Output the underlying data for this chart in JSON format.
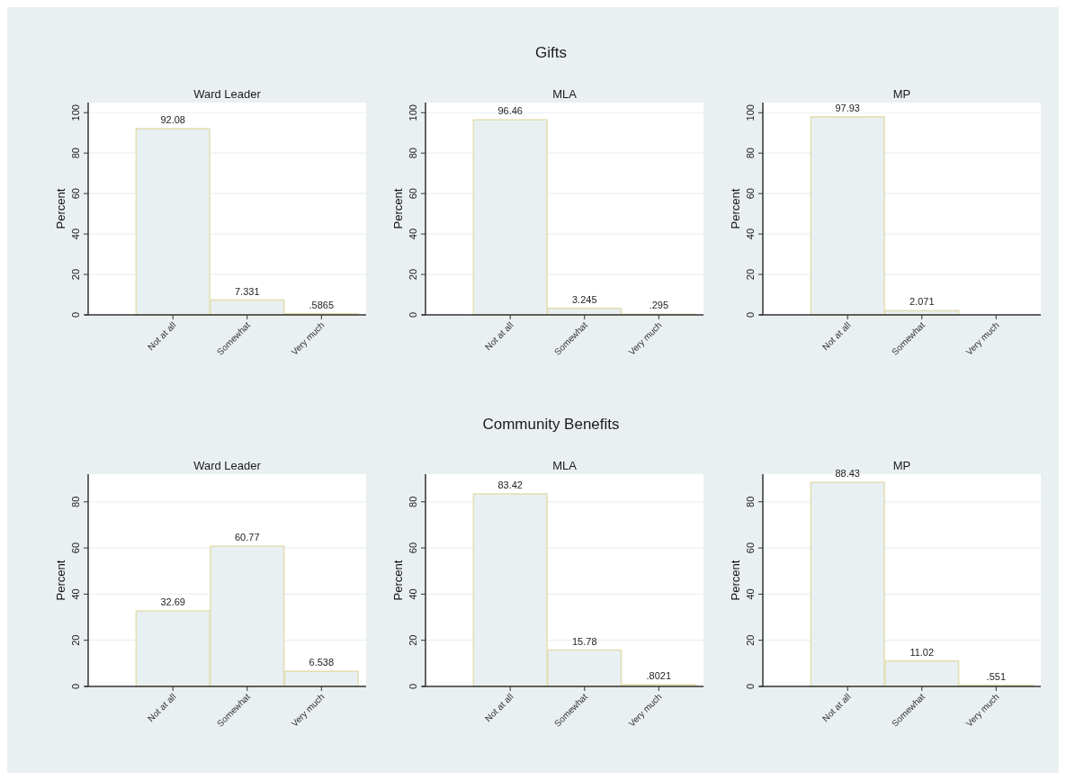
{
  "chart_data": [
    {
      "type": "bar",
      "title": "Ward Leader",
      "annotations": [
        "Gifts"
      ],
      "ylabel": "Percent",
      "categories": [
        "Not at all",
        "Somewhat",
        "Very much"
      ],
      "values": [
        92.08,
        7.331,
        0.5865
      ],
      "value_labels": [
        "92.08",
        "7.331",
        ".5865"
      ],
      "color": "#e8f0f2",
      "ylim": [
        0,
        105
      ],
      "yticks": [
        0,
        20,
        40,
        60,
        80,
        100
      ],
      "grid": "y"
    },
    {
      "type": "bar",
      "title": "MLA",
      "ylabel": "Percent",
      "categories": [
        "Not at all",
        "Somewhat",
        "Very much"
      ],
      "values": [
        96.46,
        3.245,
        0.295
      ],
      "value_labels": [
        "96.46",
        "3.245",
        ".295"
      ],
      "color": "#e8f0f2",
      "ylim": [
        0,
        105
      ],
      "yticks": [
        0,
        20,
        40,
        60,
        80,
        100
      ],
      "grid": "y"
    },
    {
      "type": "bar",
      "title": "MP",
      "ylabel": "Percent",
      "categories": [
        "Not at all",
        "Somewhat",
        "Very much"
      ],
      "values": [
        97.93,
        2.071,
        null
      ],
      "value_labels": [
        "97.93",
        "2.071",
        null
      ],
      "color": "#e8f0f2",
      "ylim": [
        0,
        105
      ],
      "yticks": [
        0,
        20,
        40,
        60,
        80,
        100
      ],
      "grid": "y"
    },
    {
      "type": "bar",
      "title": "Ward Leader",
      "annotations": [
        "Community Benefits"
      ],
      "ylabel": "Percent",
      "categories": [
        "Not at all",
        "Somewhat",
        "Very much"
      ],
      "values": [
        32.69,
        60.77,
        6.538
      ],
      "value_labels": [
        "32.69",
        "60.77",
        "6.538"
      ],
      "color": "#e8f0f2",
      "ylim": [
        0,
        92
      ],
      "yticks": [
        0,
        20,
        40,
        60,
        80
      ],
      "grid": "y"
    },
    {
      "type": "bar",
      "title": "MLA",
      "ylabel": "Percent",
      "categories": [
        "Not at all",
        "Somewhat",
        "Very much"
      ],
      "values": [
        83.42,
        15.78,
        0.8021
      ],
      "value_labels": [
        "83.42",
        "15.78",
        ".8021"
      ],
      "color": "#e8f0f2",
      "ylim": [
        0,
        92
      ],
      "yticks": [
        0,
        20,
        40,
        60,
        80
      ],
      "grid": "y"
    },
    {
      "type": "bar",
      "title": "MP",
      "ylabel": "Percent",
      "categories": [
        "Not at all",
        "Somewhat",
        "Very much"
      ],
      "values": [
        88.43,
        11.02,
        0.551
      ],
      "value_labels": [
        "88.43",
        "11.02",
        ".551"
      ],
      "color": "#e8f0f2",
      "ylim": [
        0,
        92
      ],
      "yticks": [
        0,
        20,
        40,
        60,
        80
      ],
      "grid": "y"
    }
  ]
}
